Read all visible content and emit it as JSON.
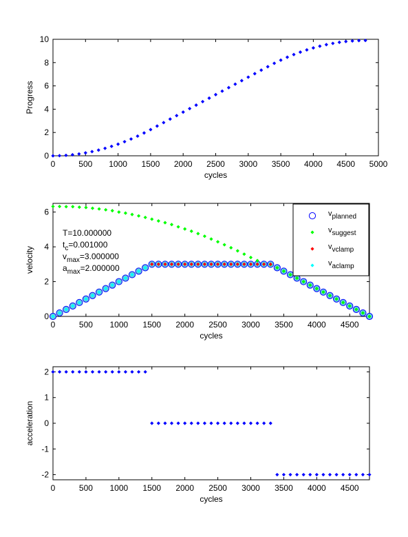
{
  "colors": {
    "background": "#ffffff",
    "planned": "#0000ff",
    "suggest": "#00ff00",
    "vclamp": "#ff0000",
    "aclamp": "#00ffff",
    "data_blue": "#0000ff",
    "fill_planned": "#66ccdd"
  },
  "chart_data": [
    {
      "type": "scatter",
      "xlabel": "cycles",
      "ylabel": "Progress",
      "xlim": [
        0,
        5000
      ],
      "ylim": [
        0,
        10
      ],
      "xticks": [
        0,
        500,
        1000,
        1500,
        2000,
        2500,
        3000,
        3500,
        4000,
        4500,
        5000
      ],
      "xtick_labels": [
        "0",
        "500",
        "1000",
        "1500",
        "2000",
        "2500",
        "3000",
        "3500",
        "4000",
        "4500",
        "5000"
      ],
      "yticks": [
        0,
        2,
        4,
        6,
        8,
        10
      ],
      "ytick_labels": [
        "0",
        "2",
        "4",
        "6",
        "8",
        "10"
      ],
      "marker": "dot",
      "color": "#0000ff",
      "x": [
        0,
        100,
        200,
        300,
        400,
        500,
        600,
        700,
        800,
        900,
        1000,
        1100,
        1200,
        1300,
        1400,
        1500,
        1600,
        1700,
        1800,
        1900,
        2000,
        2100,
        2200,
        2300,
        2400,
        2500,
        2600,
        2700,
        2800,
        2900,
        3000,
        3100,
        3200,
        3300,
        3400,
        3500,
        3600,
        3700,
        3800,
        3900,
        4000,
        4100,
        4200,
        4300,
        4400,
        4500,
        4600,
        4700,
        4800
      ],
      "y": [
        0,
        0.01,
        0.04,
        0.09,
        0.16,
        0.25,
        0.36,
        0.49,
        0.64,
        0.81,
        1.0,
        1.21,
        1.44,
        1.69,
        1.96,
        2.25,
        2.55,
        2.85,
        3.15,
        3.45,
        3.75,
        4.05,
        4.35,
        4.65,
        4.95,
        5.25,
        5.55,
        5.85,
        6.15,
        6.45,
        6.75,
        7.05,
        7.35,
        7.65,
        7.94,
        8.21,
        8.46,
        8.69,
        8.9,
        9.09,
        9.26,
        9.41,
        9.54,
        9.65,
        9.74,
        9.81,
        9.86,
        9.89,
        9.9
      ]
    },
    {
      "type": "scatter",
      "xlabel": "cycles",
      "ylabel": "velocity",
      "xlim": [
        0,
        4800
      ],
      "ylim": [
        0,
        6.5
      ],
      "xticks": [
        0,
        500,
        1000,
        1500,
        2000,
        2500,
        3000,
        3500,
        4000,
        4500
      ],
      "xtick_labels": [
        "0",
        "500",
        "1000",
        "1500",
        "2000",
        "2500",
        "3000",
        "3500",
        "4000",
        "4500"
      ],
      "yticks": [
        0,
        2,
        4,
        6
      ],
      "ytick_labels": [
        "0",
        "2",
        "4",
        "6"
      ],
      "legend_location": "top-right",
      "legend": [
        {
          "base": "v",
          "sub": "planned",
          "marker": "circle",
          "color": "#0000ff"
        },
        {
          "base": "v",
          "sub": "suggest",
          "marker": "dot",
          "color": "#00ff00"
        },
        {
          "base": "v",
          "sub": "vclamp",
          "marker": "dot",
          "color": "#ff0000"
        },
        {
          "base": "v",
          "sub": "aclamp",
          "marker": "dot",
          "color": "#00ffff"
        }
      ],
      "annotation": [
        {
          "base": "T=10.000000",
          "sub": ""
        },
        {
          "base": "t",
          "sub": "c",
          "rest": "=0.001000"
        },
        {
          "base": "v",
          "sub": "max",
          "rest": "=3.000000"
        },
        {
          "base": "a",
          "sub": "max",
          "rest": "=2.000000"
        }
      ],
      "series": [
        {
          "name": "v_planned",
          "marker": "circle",
          "x": [
            0,
            100,
            200,
            300,
            400,
            500,
            600,
            700,
            800,
            900,
            1000,
            1100,
            1200,
            1300,
            1400,
            1500,
            1600,
            1700,
            1800,
            1900,
            2000,
            2100,
            2200,
            2300,
            2400,
            2500,
            2600,
            2700,
            2800,
            2900,
            3000,
            3100,
            3200,
            3300,
            3400,
            3500,
            3600,
            3700,
            3800,
            3900,
            4000,
            4100,
            4200,
            4300,
            4400,
            4500,
            4600,
            4700,
            4800
          ],
          "y": [
            0,
            0.2,
            0.4,
            0.6,
            0.8,
            1.0,
            1.2,
            1.4,
            1.6,
            1.8,
            2.0,
            2.2,
            2.4,
            2.6,
            2.8,
            3,
            3,
            3,
            3,
            3,
            3,
            3,
            3,
            3,
            3,
            3,
            3,
            3,
            3,
            3,
            3,
            3,
            3,
            3,
            2.8,
            2.6,
            2.4,
            2.2,
            2.0,
            1.8,
            1.6,
            1.4,
            1.2,
            1.0,
            0.8,
            0.6,
            0.4,
            0.2,
            0
          ]
        },
        {
          "name": "v_suggest",
          "marker": "dot",
          "x": [
            0,
            100,
            200,
            300,
            400,
            500,
            600,
            700,
            800,
            900,
            1000,
            1100,
            1200,
            1300,
            1400,
            1500,
            1600,
            1700,
            1800,
            1900,
            2000,
            2100,
            2200,
            2300,
            2400,
            2500,
            2600,
            2700,
            2800,
            2900,
            3000,
            3100,
            3200,
            3300,
            3400,
            3500,
            3600,
            3700,
            3800,
            3900,
            4000,
            4100,
            4200,
            4300,
            4400,
            4500,
            4600,
            4700,
            4800
          ],
          "y": [
            6.32,
            6.32,
            6.31,
            6.31,
            6.28,
            6.26,
            6.22,
            6.18,
            6.13,
            6.08,
            6.0,
            5.94,
            5.86,
            5.78,
            5.69,
            5.59,
            5.49,
            5.39,
            5.28,
            5.15,
            5.03,
            4.9,
            4.76,
            4.61,
            4.45,
            4.29,
            4.12,
            3.95,
            3.77,
            3.58,
            3.39,
            3.21,
            3.0,
            2.98,
            2.8,
            2.6,
            2.4,
            2.2,
            2.0,
            1.8,
            1.6,
            1.4,
            1.2,
            1.0,
            0.8,
            0.6,
            0.4,
            0.2,
            0
          ]
        },
        {
          "name": "v_vclamp",
          "marker": "dot",
          "x": [
            1500,
            1600,
            1700,
            1800,
            1900,
            2000,
            2100,
            2200,
            2300,
            2400,
            2500,
            2600,
            2700,
            2800,
            2900,
            3000,
            3100,
            3200,
            3300
          ],
          "y": [
            3,
            3,
            3,
            3,
            3,
            3,
            3,
            3,
            3,
            3,
            3,
            3,
            3,
            3,
            3,
            3,
            3,
            3,
            3
          ]
        },
        {
          "name": "v_aclamp",
          "marker": "dot",
          "x": [
            0,
            100,
            200,
            300,
            400,
            500,
            600,
            700,
            800,
            900,
            1000,
            1100,
            1200,
            1300,
            1400
          ],
          "y": [
            0,
            0.2,
            0.4,
            0.6,
            0.8,
            1.0,
            1.2,
            1.4,
            1.6,
            1.8,
            2.0,
            2.2,
            2.4,
            2.6,
            2.8
          ]
        }
      ]
    },
    {
      "type": "scatter",
      "xlabel": "cycles",
      "ylabel": "acceleration",
      "xlim": [
        0,
        4800
      ],
      "ylim": [
        -2.2,
        2.2
      ],
      "xticks": [
        0,
        500,
        1000,
        1500,
        2000,
        2500,
        3000,
        3500,
        4000,
        4500
      ],
      "xtick_labels": [
        "0",
        "500",
        "1000",
        "1500",
        "2000",
        "2500",
        "3000",
        "3500",
        "4000",
        "4500"
      ],
      "yticks": [
        -2,
        -1,
        0,
        1,
        2
      ],
      "ytick_labels": [
        "-2",
        "-1",
        "0",
        "1",
        "2"
      ],
      "marker": "dot",
      "color": "#0000ff",
      "x": [
        0,
        100,
        200,
        300,
        400,
        500,
        600,
        700,
        800,
        900,
        1000,
        1100,
        1200,
        1300,
        1400,
        1500,
        1600,
        1700,
        1800,
        1900,
        2000,
        2100,
        2200,
        2300,
        2400,
        2500,
        2600,
        2700,
        2800,
        2900,
        3000,
        3100,
        3200,
        3300,
        3400,
        3500,
        3600,
        3700,
        3800,
        3900,
        4000,
        4100,
        4200,
        4300,
        4400,
        4500,
        4600,
        4700,
        4800
      ],
      "y": [
        2,
        2,
        2,
        2,
        2,
        2,
        2,
        2,
        2,
        2,
        2,
        2,
        2,
        2,
        2,
        0,
        0,
        0,
        0,
        0,
        0,
        0,
        0,
        0,
        0,
        0,
        0,
        0,
        0,
        0,
        0,
        0,
        0,
        0,
        -2,
        -2,
        -2,
        -2,
        -2,
        -2,
        -2,
        -2,
        -2,
        -2,
        -2,
        -2,
        -2,
        -2,
        -2
      ]
    }
  ]
}
